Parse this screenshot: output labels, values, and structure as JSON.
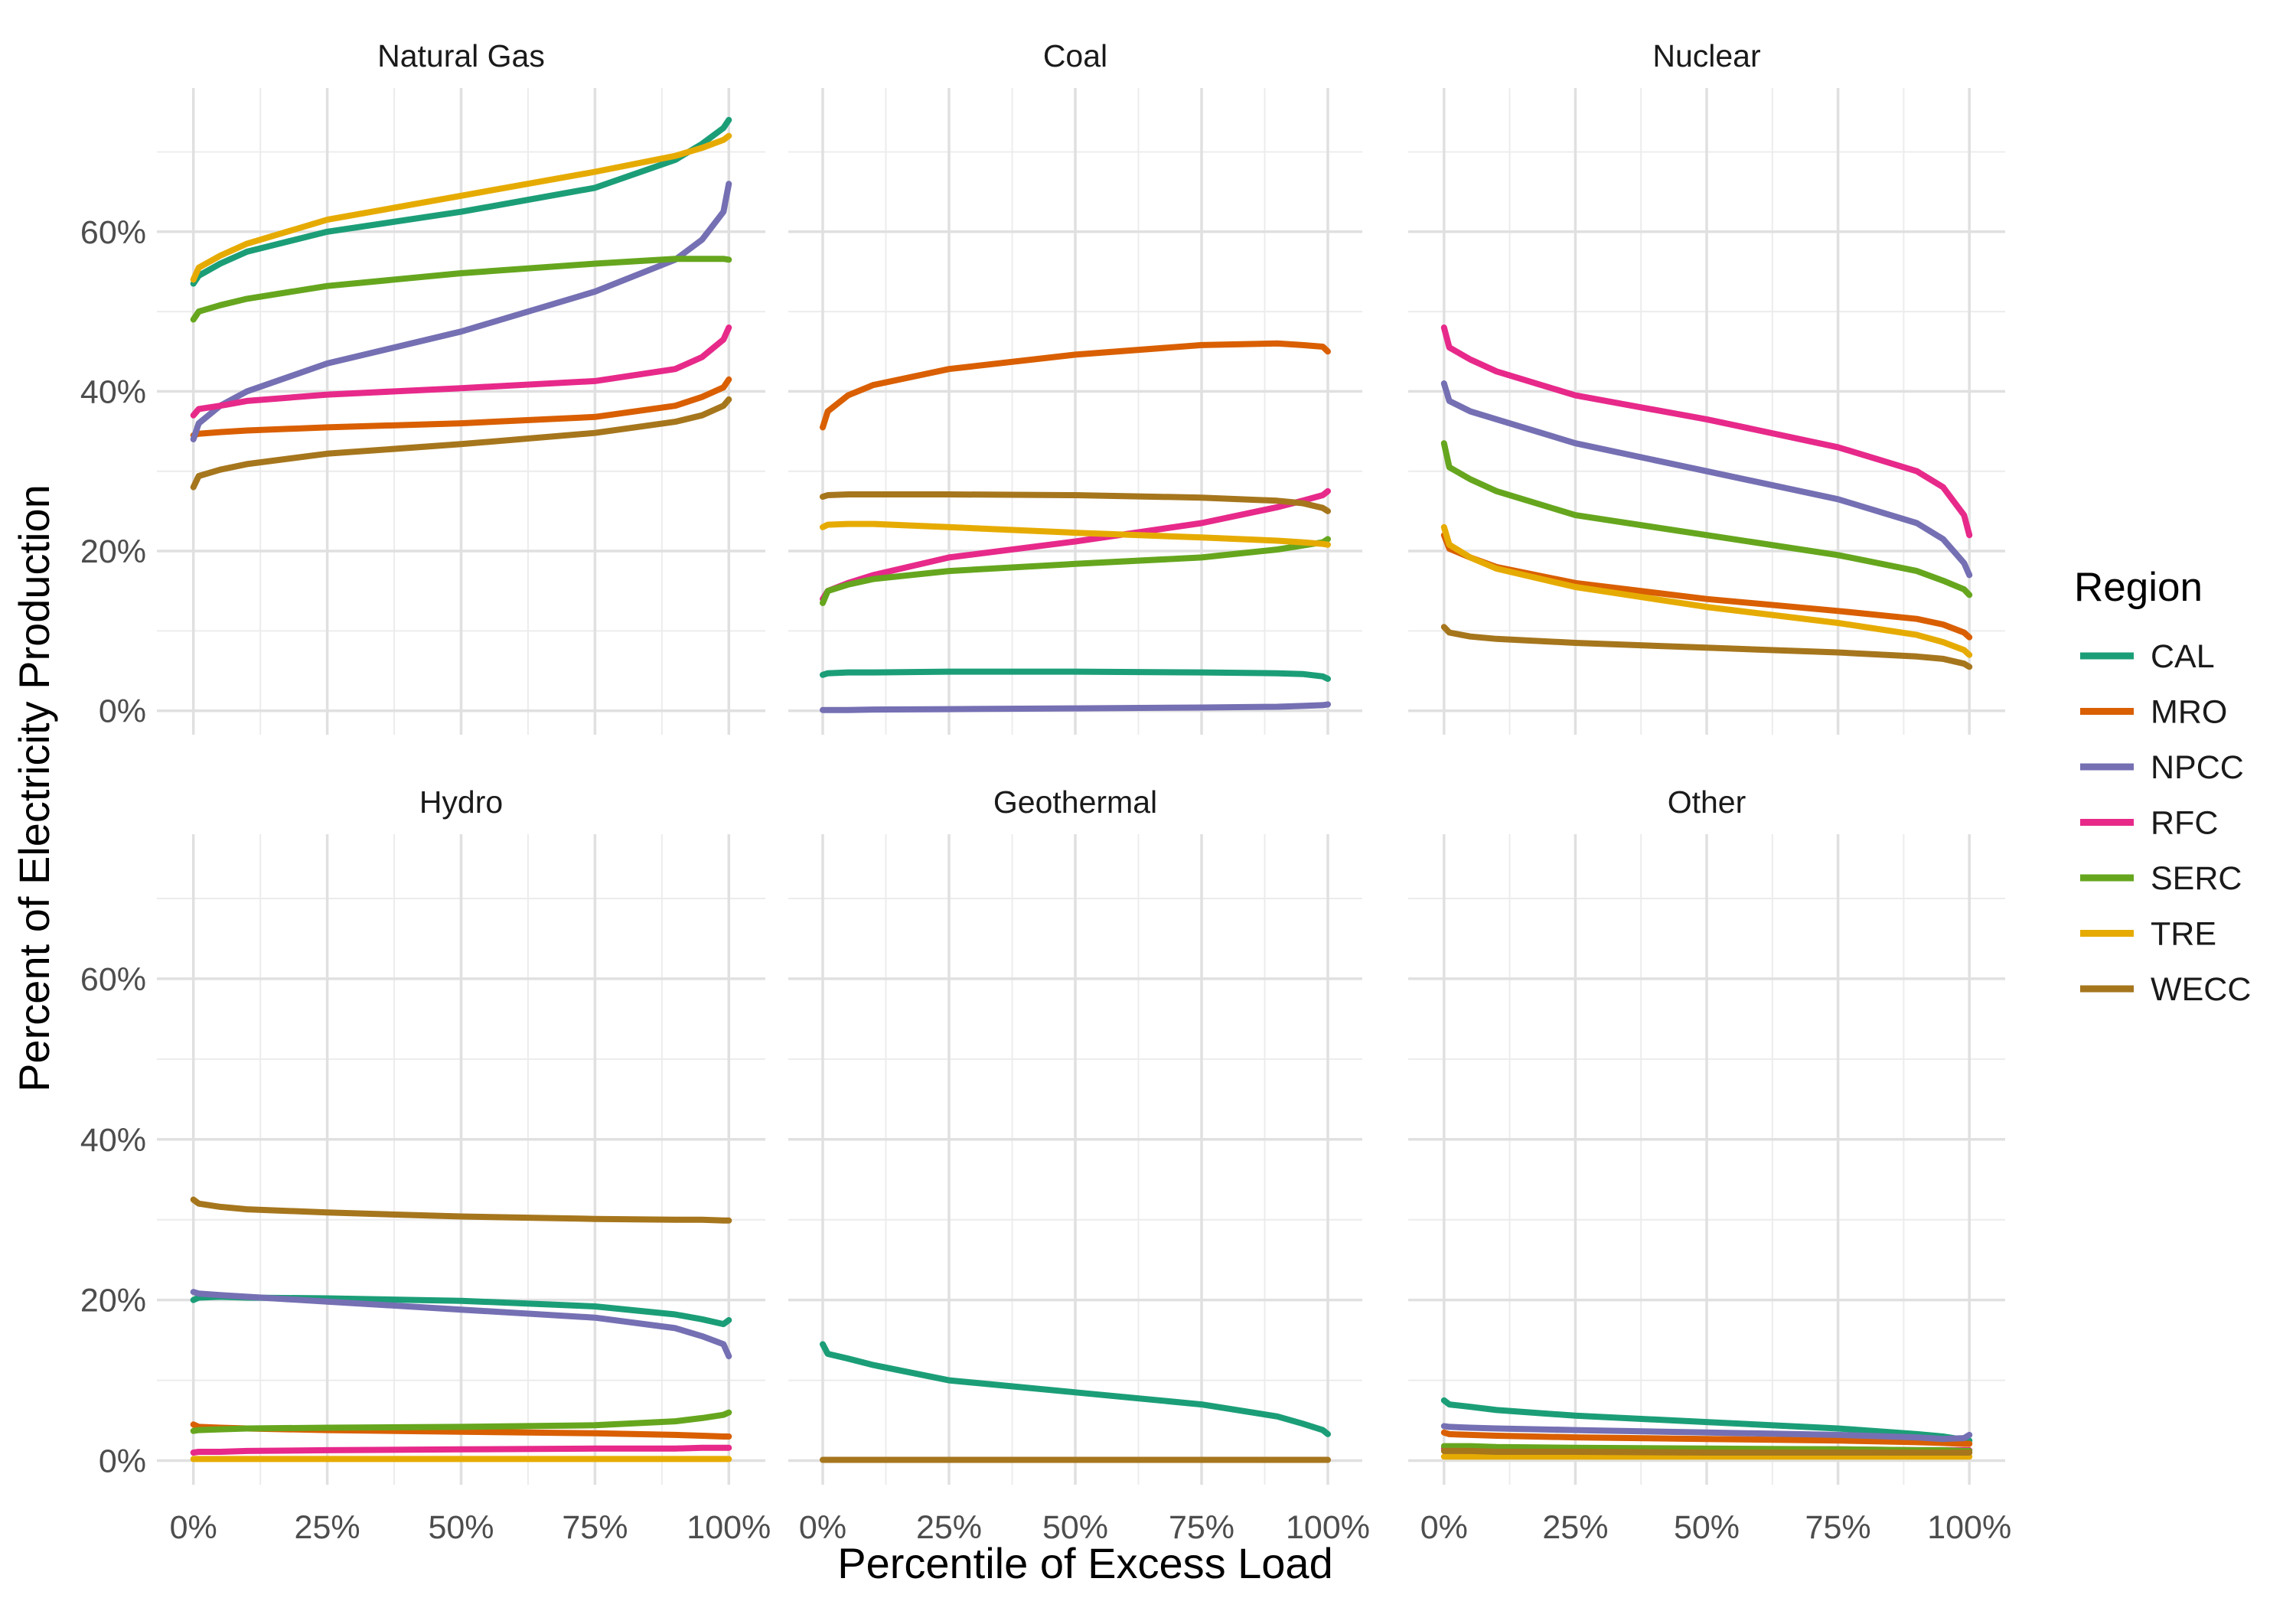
{
  "chart_data": {
    "type": "line",
    "facet_layout": "2x3",
    "xlabel": "Percentile of Excess Load",
    "ylabel": "Percent of Electricity Production",
    "xlim": [
      0,
      100
    ],
    "ylim": [
      -3,
      78
    ],
    "x_ticks": [
      0,
      25,
      50,
      75,
      100
    ],
    "x_tick_labels": [
      "0%",
      "25%",
      "50%",
      "75%",
      "100%"
    ],
    "y_ticks": [
      0,
      20,
      40,
      60
    ],
    "y_tick_labels": [
      "0%",
      "20%",
      "40%",
      "60%"
    ],
    "grid": true,
    "legend": {
      "title": "Region",
      "position": "right"
    },
    "colors": {
      "CAL": "#1b9e77",
      "MRO": "#d95f02",
      "NPCC": "#7570b3",
      "RFC": "#e7298a",
      "SERC": "#66a61e",
      "TRE": "#e6ab02",
      "WECC": "#a6761d"
    },
    "regions": [
      "CAL",
      "MRO",
      "NPCC",
      "RFC",
      "SERC",
      "TRE",
      "WECC"
    ],
    "x": [
      0,
      1,
      5,
      10,
      25,
      50,
      75,
      90,
      95,
      99,
      100
    ],
    "panels": [
      {
        "title": "Natural Gas",
        "series": [
          {
            "name": "CAL",
            "values": [
              53.5,
              54.5,
              56,
              57.5,
              60,
              62.5,
              65.5,
              69,
              71,
              73,
              74
            ]
          },
          {
            "name": "MRO",
            "values": [
              34.5,
              34.7,
              34.9,
              35.1,
              35.5,
              36,
              36.8,
              38.2,
              39.3,
              40.5,
              41.5
            ]
          },
          {
            "name": "NPCC",
            "values": [
              34,
              36,
              38.2,
              40,
              43.5,
              47.5,
              52.5,
              56.5,
              59,
              62.5,
              66
            ]
          },
          {
            "name": "RFC",
            "values": [
              37,
              37.8,
              38.2,
              38.8,
              39.6,
              40.4,
              41.3,
              42.8,
              44.3,
              46.5,
              48
            ]
          },
          {
            "name": "SERC",
            "values": [
              49,
              50,
              50.8,
              51.6,
              53.2,
              54.8,
              56,
              56.6,
              56.6,
              56.6,
              56.5
            ]
          },
          {
            "name": "TRE",
            "values": [
              54,
              55.5,
              57,
              58.5,
              61.5,
              64.5,
              67.5,
              69.5,
              70.5,
              71.5,
              72
            ]
          },
          {
            "name": "WECC",
            "values": [
              28,
              29.4,
              30.2,
              30.9,
              32.2,
              33.4,
              34.8,
              36.2,
              37,
              38.2,
              39
            ]
          }
        ]
      },
      {
        "title": "Coal",
        "series": [
          {
            "name": "CAL",
            "values": [
              4.5,
              4.7,
              4.8,
              4.8,
              4.9,
              4.9,
              4.8,
              4.7,
              4.6,
              4.3,
              4.0
            ]
          },
          {
            "name": "MRO",
            "values": [
              35.5,
              37.5,
              39.5,
              40.8,
              42.8,
              44.6,
              45.8,
              46,
              45.8,
              45.6,
              45
            ]
          },
          {
            "name": "NPCC",
            "values": [
              0.1,
              0.1,
              0.1,
              0.15,
              0.2,
              0.3,
              0.4,
              0.5,
              0.6,
              0.7,
              0.8
            ]
          },
          {
            "name": "RFC",
            "values": [
              14,
              15,
              16,
              17,
              19.2,
              21.2,
              23.5,
              25.5,
              26.3,
              27,
              27.5
            ]
          },
          {
            "name": "SERC",
            "values": [
              13.5,
              15,
              15.8,
              16.5,
              17.5,
              18.4,
              19.2,
              20.2,
              20.7,
              21.1,
              21.5
            ]
          },
          {
            "name": "TRE",
            "values": [
              23,
              23.3,
              23.4,
              23.4,
              23,
              22.3,
              21.7,
              21.3,
              21.1,
              20.9,
              20.8
            ]
          },
          {
            "name": "WECC",
            "values": [
              26.8,
              27,
              27.1,
              27.1,
              27.1,
              27,
              26.7,
              26.3,
              26,
              25.4,
              25
            ]
          }
        ]
      },
      {
        "title": "Nuclear",
        "series": [
          {
            "name": "CAL",
            "values": []
          },
          {
            "name": "MRO",
            "values": [
              22,
              20.3,
              19.2,
              18,
              16,
              14,
              12.5,
              11.5,
              10.8,
              9.8,
              9.2
            ]
          },
          {
            "name": "NPCC",
            "values": [
              41,
              38.8,
              37.5,
              36.5,
              33.5,
              30,
              26.5,
              23.5,
              21.5,
              18.5,
              17
            ]
          },
          {
            "name": "RFC",
            "values": [
              48,
              45.5,
              44,
              42.5,
              39.5,
              36.5,
              33,
              30,
              28,
              24.5,
              22
            ]
          },
          {
            "name": "SERC",
            "values": [
              33.5,
              30.5,
              29,
              27.5,
              24.5,
              22,
              19.5,
              17.5,
              16.3,
              15.2,
              14.5
            ]
          },
          {
            "name": "TRE",
            "values": [
              23,
              20.8,
              19.2,
              17.8,
              15.5,
              13,
              11,
              9.5,
              8.6,
              7.6,
              7
            ]
          },
          {
            "name": "WECC",
            "values": [
              10.5,
              9.8,
              9.3,
              9,
              8.5,
              7.9,
              7.3,
              6.8,
              6.5,
              5.9,
              5.5
            ]
          }
        ]
      },
      {
        "title": "Hydro",
        "series": [
          {
            "name": "CAL",
            "values": [
              20,
              20.3,
              20.4,
              20.3,
              20.2,
              19.9,
              19.2,
              18.2,
              17.6,
              17,
              17.5
            ]
          },
          {
            "name": "MRO",
            "values": [
              4.5,
              4.2,
              4.1,
              4,
              3.8,
              3.6,
              3.4,
              3.2,
              3.1,
              3.0,
              3.0
            ]
          },
          {
            "name": "NPCC",
            "values": [
              21,
              20.8,
              20.6,
              20.4,
              19.8,
              18.8,
              17.8,
              16.5,
              15.5,
              14.5,
              13
            ]
          },
          {
            "name": "RFC",
            "values": [
              1,
              1.1,
              1.1,
              1.2,
              1.3,
              1.4,
              1.5,
              1.5,
              1.6,
              1.6,
              1.6
            ]
          },
          {
            "name": "SERC",
            "values": [
              3.7,
              3.8,
              3.9,
              4,
              4.1,
              4.2,
              4.4,
              4.9,
              5.3,
              5.7,
              6
            ]
          },
          {
            "name": "TRE",
            "values": [
              0.2,
              0.2,
              0.2,
              0.2,
              0.2,
              0.2,
              0.2,
              0.2,
              0.2,
              0.2,
              0.2
            ]
          },
          {
            "name": "WECC",
            "values": [
              32.5,
              32,
              31.6,
              31.3,
              30.9,
              30.4,
              30.1,
              30,
              30,
              29.9,
              29.9
            ]
          }
        ]
      },
      {
        "title": "Geothermal",
        "series": [
          {
            "name": "CAL",
            "values": [
              14.5,
              13.3,
              12.7,
              11.9,
              10,
              8.5,
              7,
              5.5,
              4.6,
              3.8,
              3.3
            ]
          },
          {
            "name": "WECC",
            "values": [
              0.1,
              0.1,
              0.1,
              0.1,
              0.1,
              0.1,
              0.1,
              0.1,
              0.1,
              0.1,
              0.1
            ]
          }
        ]
      },
      {
        "title": "Other",
        "series": [
          {
            "name": "CAL",
            "values": [
              7.5,
              7,
              6.7,
              6.3,
              5.6,
              4.8,
              4,
              3.3,
              3,
              2.6,
              2.5
            ]
          },
          {
            "name": "MRO",
            "values": [
              3.5,
              3.3,
              3.2,
              3.1,
              2.9,
              2.7,
              2.5,
              2.3,
              2.2,
              2.1,
              2.1
            ]
          },
          {
            "name": "NPCC",
            "values": [
              4.3,
              4.2,
              4.1,
              4,
              3.8,
              3.5,
              3.2,
              2.9,
              2.7,
              2.8,
              3.2
            ]
          },
          {
            "name": "RFC",
            "values": [
              1.5,
              1.5,
              1.5,
              1.5,
              1.5,
              1.4,
              1.4,
              1.3,
              1.3,
              1.3,
              1.3
            ]
          },
          {
            "name": "SERC",
            "values": [
              1.8,
              1.8,
              1.8,
              1.7,
              1.6,
              1.5,
              1.4,
              1.3,
              1.3,
              1.2,
              1.2
            ]
          },
          {
            "name": "TRE",
            "values": [
              0.5,
              0.5,
              0.5,
              0.5,
              0.5,
              0.5,
              0.5,
              0.5,
              0.5,
              0.5,
              0.5
            ]
          },
          {
            "name": "WECC",
            "values": [
              1.2,
              1.2,
              1.2,
              1.1,
              1.1,
              1.0,
              1.0,
              1.0,
              1.0,
              1.0,
              1.0
            ]
          }
        ]
      }
    ]
  }
}
